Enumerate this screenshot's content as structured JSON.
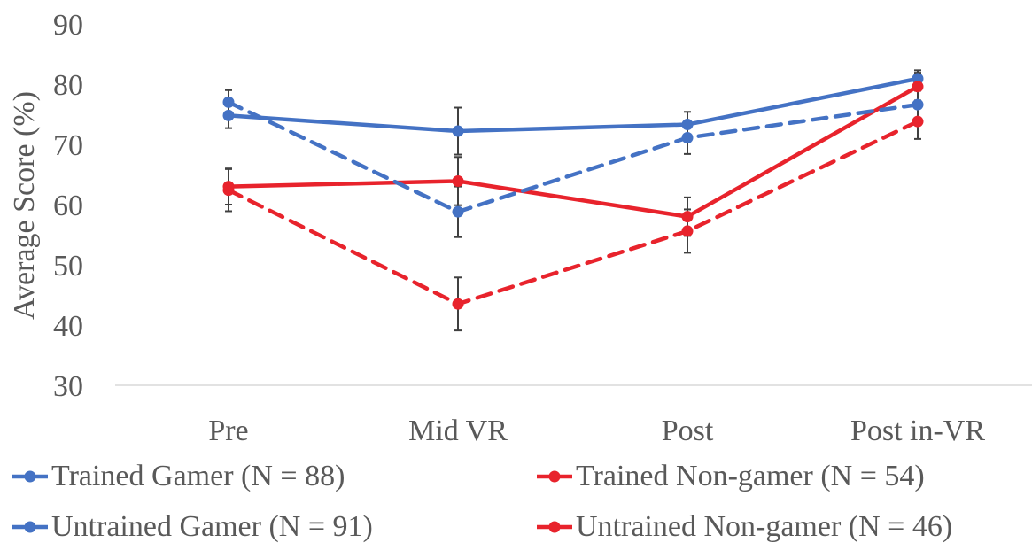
{
  "chart_data": {
    "type": "line",
    "title": "",
    "xlabel": "",
    "ylabel": "Average Score (%)",
    "ylim": [
      30,
      90
    ],
    "yticks": [
      30,
      40,
      50,
      60,
      70,
      80,
      90
    ],
    "categories": [
      "Pre",
      "Mid VR",
      "Post",
      "Post in-VR"
    ],
    "grid": false,
    "legend_position": "bottom",
    "series": [
      {
        "name": "Trained Gamer (N = 88)",
        "color": "#4472C4",
        "dash": "solid",
        "values": [
          74.8,
          72.2,
          73.3,
          80.9
        ],
        "error": [
          2.1,
          3.9,
          2.1,
          1.4
        ]
      },
      {
        "name": "Trained Non-gamer (N = 54)",
        "color": "#E8232C",
        "dash": "solid",
        "values": [
          63.0,
          63.9,
          58.0,
          79.6
        ],
        "error": [
          3.0,
          4.0,
          3.2,
          2.3
        ]
      },
      {
        "name": "Untrained Gamer (N = 91)",
        "color": "#4472C4",
        "dash": "dashed",
        "values": [
          77.0,
          58.8,
          71.1,
          76.6
        ],
        "error": [
          2.0,
          4.2,
          2.7,
          2.3
        ]
      },
      {
        "name": "Untrained Non-gamer (N = 46)",
        "color": "#E8232C",
        "dash": "dashed",
        "values": [
          62.4,
          43.5,
          55.6,
          73.8
        ],
        "error": [
          3.5,
          4.4,
          3.6,
          2.9
        ]
      }
    ]
  }
}
